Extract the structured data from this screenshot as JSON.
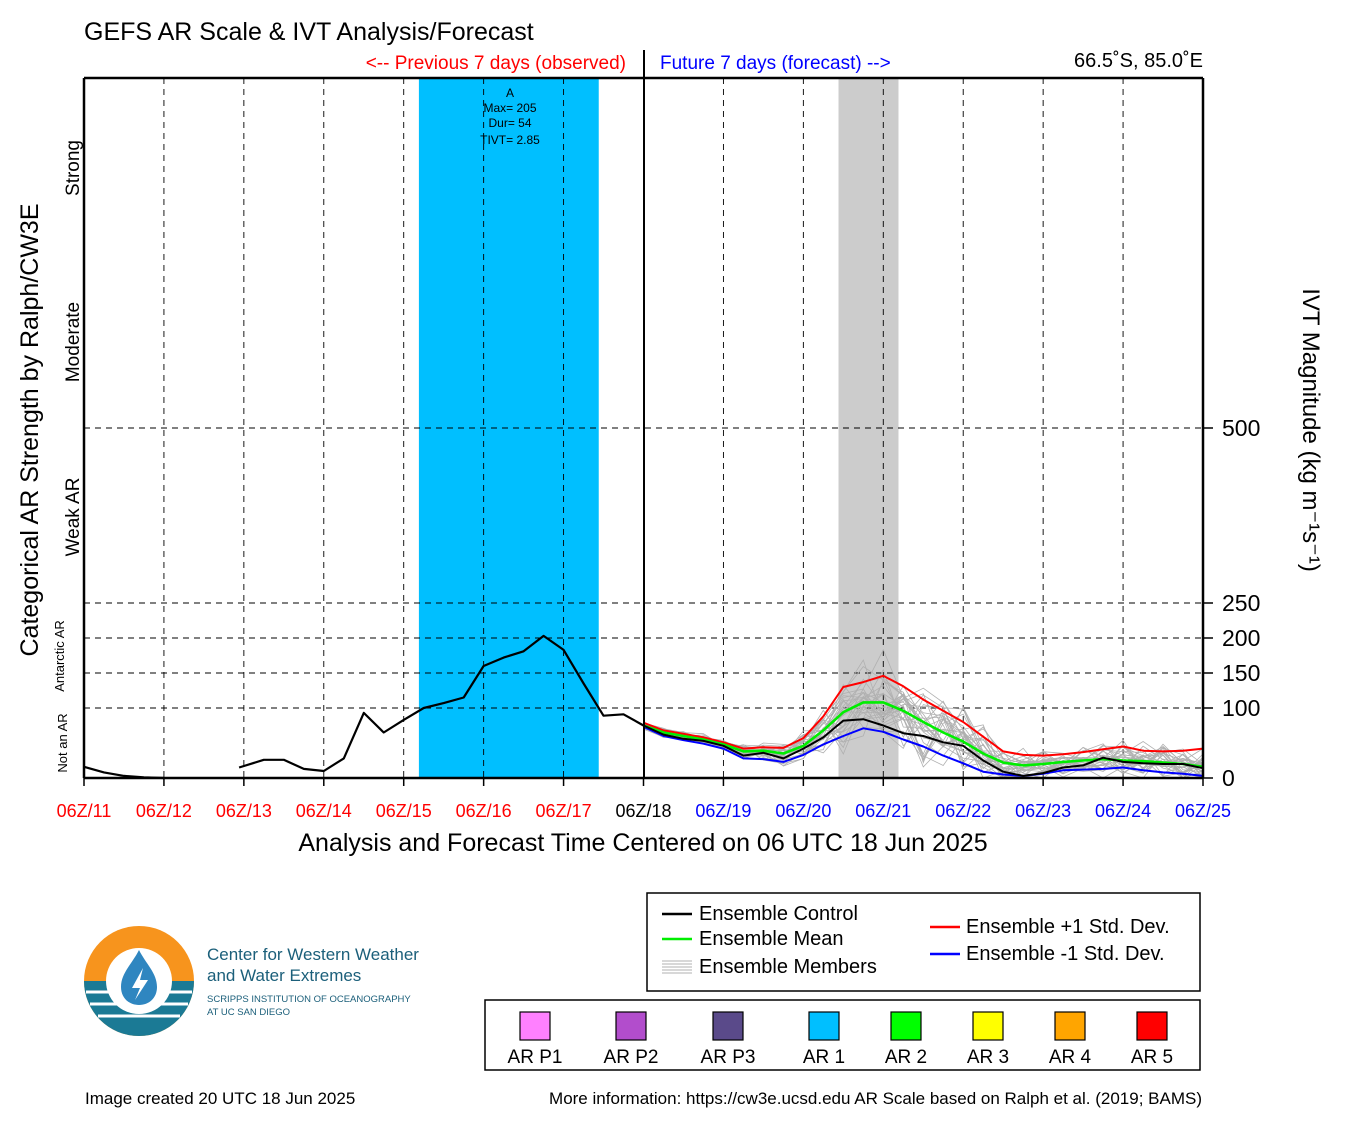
{
  "title": "GEFS AR Scale & IVT Analysis/Forecast",
  "header": {
    "previous_label": "<-- Previous 7 days (observed)",
    "future_label": "Future 7 days (forecast) -->",
    "location": "66.5˚S, 85.0˚E"
  },
  "y_left_label": "Categorical AR Strength by Ralph/CW3E",
  "y_right_label": "IVT Magnitude (kg m⁻¹s⁻¹)",
  "category_labels": [
    "Strong",
    "Moderate",
    "Weak AR",
    "Antarctic AR",
    "Not an AR"
  ],
  "x_axis_title": "Analysis and Forecast Time Centered on 06 UTC 18 Jun 2025",
  "ar_event": {
    "label": "A",
    "max": "Max= 205",
    "dur": "Dur= 54",
    "tivt": "TIVT= 2.85"
  },
  "legend": {
    "control": "Ensemble Control",
    "mean": "Ensemble Mean",
    "members": "Ensemble Members",
    "plus": "Ensemble +1 Std. Dev.",
    "minus": "Ensemble -1 Std. Dev."
  },
  "scale_legend": [
    {
      "label": "AR P1",
      "color": "#ff80ff"
    },
    {
      "label": "AR P2",
      "color": "#b24dcc"
    },
    {
      "label": "AR P3",
      "color": "#5a4a8a"
    },
    {
      "label": "AR 1",
      "color": "#00bfff"
    },
    {
      "label": "AR 2",
      "color": "#00ff00"
    },
    {
      "label": "AR 3",
      "color": "#ffff00"
    },
    {
      "label": "AR 4",
      "color": "#ffa500"
    },
    {
      "label": "AR 5",
      "color": "#ff0000"
    }
  ],
  "logo": {
    "line1": "Center for Western Weather",
    "line2": "and Water Extremes",
    "line3": "SCRIPPS INSTITUTION OF OCEANOGRAPHY",
    "line4": "AT UC SAN DIEGO"
  },
  "footer": {
    "created": "Image created 20 UTC 18 Jun 2025",
    "info": "More information: https://cw3e.ucsd.edu AR Scale based on Ralph et al. (2019; BAMS)"
  },
  "colors": {
    "observed": "#ff0000",
    "forecast": "#0000ff",
    "ar1_band": "#00bfff",
    "gray_band": "#cccccc",
    "control": "#000000",
    "mean": "#00ee00",
    "plus_sd": "#ff0000",
    "minus_sd": "#0000ff",
    "members": "#b0b0b0"
  },
  "chart_data": {
    "type": "line",
    "x_ticks": [
      "06Z/11",
      "06Z/12",
      "06Z/13",
      "06Z/14",
      "06Z/15",
      "06Z/16",
      "06Z/17",
      "06Z/18",
      "06Z/19",
      "06Z/20",
      "06Z/21",
      "06Z/22",
      "06Z/23",
      "06Z/24",
      "06Z/25"
    ],
    "x_tick_groups": [
      "observed",
      "observed",
      "observed",
      "observed",
      "observed",
      "observed",
      "observed",
      "center",
      "forecast",
      "forecast",
      "forecast",
      "forecast",
      "forecast",
      "forecast",
      "forecast"
    ],
    "x_unit": "days since 06Z/11",
    "xlim": [
      0,
      14
    ],
    "y_ticks": [
      0,
      100,
      150,
      200,
      250,
      500
    ],
    "ylim": [
      0,
      1000
    ],
    "grid": true,
    "ar_band": {
      "x0": 4.19,
      "x1": 6.44,
      "category": "AR 1"
    },
    "gray_band": {
      "x0": 9.44,
      "x1": 10.19
    },
    "observed_series": {
      "name": "Analysis",
      "segments": [
        [
          [
            0,
            16
          ],
          [
            0.25,
            8
          ],
          [
            0.5,
            3
          ],
          [
            0.75,
            1
          ],
          [
            1,
            0
          ]
        ],
        [
          [
            1.94,
            15
          ],
          [
            2.25,
            26
          ],
          [
            2.5,
            26
          ],
          [
            2.75,
            13
          ],
          [
            3,
            10
          ],
          [
            3.25,
            28
          ],
          [
            3.5,
            93
          ],
          [
            3.75,
            65
          ],
          [
            4,
            83
          ],
          [
            4.25,
            100
          ],
          [
            4.5,
            107
          ],
          [
            4.75,
            115
          ],
          [
            5,
            160
          ],
          [
            5.25,
            172
          ],
          [
            5.5,
            181
          ],
          [
            5.75,
            203
          ],
          [
            6,
            183
          ],
          [
            6.25,
            135
          ],
          [
            6.5,
            89
          ],
          [
            6.75,
            91
          ],
          [
            7,
            75
          ]
        ]
      ]
    },
    "series": [
      {
        "name": "Ensemble Control",
        "x": [
          7,
          7.25,
          7.5,
          7.75,
          8,
          8.25,
          8.5,
          8.75,
          9,
          9.25,
          9.5,
          9.75,
          10,
          10.25,
          10.5,
          10.75,
          11,
          11.25,
          11.5,
          11.75,
          12,
          12.25,
          12.5,
          12.75,
          13,
          13.25,
          13.5,
          13.75,
          14
        ],
        "values": [
          75,
          62,
          56,
          53,
          46,
          32,
          36,
          28,
          42,
          58,
          82,
          84,
          75,
          64,
          60,
          51,
          46,
          25,
          9,
          3,
          7,
          15,
          18,
          29,
          23,
          21,
          20,
          20,
          14
        ]
      },
      {
        "name": "Ensemble Mean",
        "x": [
          7,
          7.25,
          7.5,
          7.75,
          8,
          8.25,
          8.5,
          8.75,
          9,
          9.25,
          9.5,
          9.75,
          10,
          10.25,
          10.5,
          10.75,
          11,
          11.25,
          11.5,
          11.75,
          12,
          12.25,
          12.5,
          12.75,
          13,
          13.25,
          13.5,
          13.75,
          14
        ],
        "values": [
          75,
          65,
          60,
          55,
          48,
          38,
          39,
          35,
          46,
          68,
          94,
          108,
          108,
          96,
          80,
          65,
          52,
          35,
          22,
          18,
          20,
          23,
          25,
          27,
          25,
          24,
          22,
          20,
          16
        ]
      },
      {
        "name": "Ensemble +1 Std. Dev.",
        "x": [
          7,
          7.25,
          7.5,
          7.75,
          8,
          8.25,
          8.5,
          8.75,
          9,
          9.25,
          9.5,
          9.75,
          10,
          10.25,
          10.5,
          10.75,
          11,
          11.25,
          11.5,
          11.75,
          12,
          12.25,
          12.5,
          12.75,
          13,
          13.25,
          13.5,
          13.75,
          14
        ],
        "values": [
          79,
          68,
          63,
          58,
          51,
          42,
          44,
          43,
          57,
          88,
          130,
          137,
          146,
          131,
          112,
          96,
          80,
          59,
          38,
          33,
          32,
          34,
          37,
          41,
          45,
          39,
          38,
          39,
          42
        ]
      },
      {
        "name": "Ensemble -1 Std. Dev.",
        "x": [
          7,
          7.25,
          7.5,
          7.75,
          8,
          8.25,
          8.5,
          8.75,
          9,
          9.25,
          9.5,
          9.75,
          10,
          10.25,
          10.5,
          10.75,
          11,
          11.25,
          11.5,
          11.75,
          12,
          12.25,
          12.5,
          12.75,
          13,
          13.25,
          13.5,
          13.75,
          14
        ],
        "values": [
          73,
          60,
          54,
          49,
          42,
          28,
          27,
          23,
          33,
          48,
          60,
          71,
          66,
          55,
          45,
          32,
          21,
          9,
          5,
          3,
          6,
          11,
          12,
          13,
          15,
          11,
          8,
          6,
          3
        ]
      }
    ]
  }
}
